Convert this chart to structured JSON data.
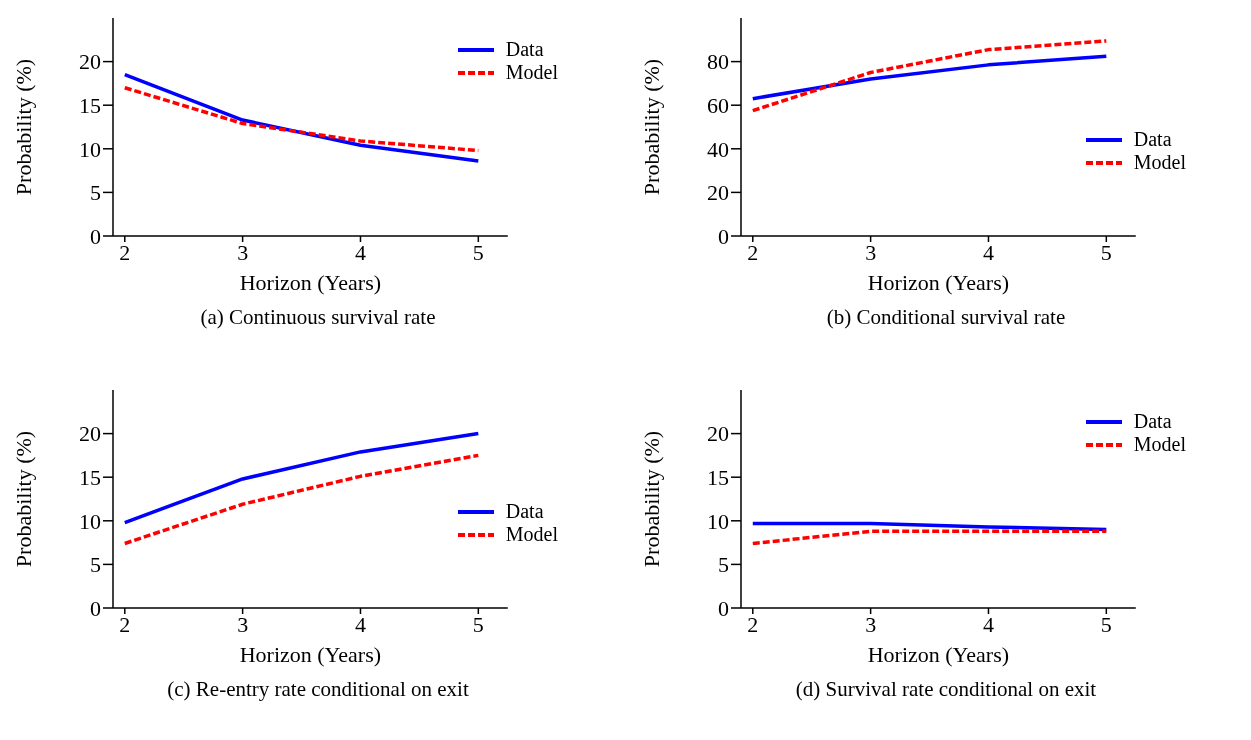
{
  "chart_data": [
    {
      "type": "line",
      "title": "(a) Continuous survival rate",
      "xlabel": "Horizon (Years)",
      "ylabel": "Probability (%)",
      "x": [
        2,
        3,
        4,
        5
      ],
      "xlim": [
        1.9,
        5.25
      ],
      "xticks": [
        2,
        3,
        4,
        5
      ],
      "ylim": [
        0,
        25
      ],
      "yticks": [
        0,
        5,
        10,
        15,
        20
      ],
      "legend": "top right",
      "grid": false,
      "marker": "none",
      "series": [
        {
          "name": "Data",
          "color": "#0000ff",
          "line_style": "solid",
          "values": [
            18.5,
            13.3,
            10.4,
            8.6
          ]
        },
        {
          "name": "Model",
          "color": "#ff0000",
          "line_style": "dashed",
          "values": [
            17.0,
            12.9,
            10.9,
            9.8
          ]
        }
      ]
    },
    {
      "type": "line",
      "title": "(b) Conditional survival rate",
      "xlabel": "Horizon (Years)",
      "ylabel": "Probability (%)",
      "x": [
        2,
        3,
        4,
        5
      ],
      "xlim": [
        1.9,
        5.25
      ],
      "xticks": [
        2,
        3,
        4,
        5
      ],
      "ylim": [
        0,
        100
      ],
      "yticks": [
        0,
        20,
        40,
        60,
        80
      ],
      "legend": "right",
      "grid": false,
      "marker": "none",
      "series": [
        {
          "name": "Data",
          "color": "#0000ff",
          "line_style": "solid",
          "values": [
            63,
            72,
            78.5,
            82.5
          ]
        },
        {
          "name": "Model",
          "color": "#ff0000",
          "line_style": "dashed",
          "values": [
            57.5,
            75,
            85.5,
            89.5
          ]
        }
      ]
    },
    {
      "type": "line",
      "title": "(c) Re-entry rate conditional on exit",
      "xlabel": "Horizon (Years)",
      "ylabel": "Probability (%)",
      "x": [
        2,
        3,
        4,
        5
      ],
      "xlim": [
        1.9,
        5.25
      ],
      "xticks": [
        2,
        3,
        4,
        5
      ],
      "ylim": [
        0,
        25
      ],
      "yticks": [
        0,
        5,
        10,
        15,
        20
      ],
      "legend": "right",
      "grid": false,
      "marker": "none",
      "series": [
        {
          "name": "Data",
          "color": "#0000ff",
          "line_style": "solid",
          "values": [
            9.8,
            14.8,
            17.9,
            20.0
          ]
        },
        {
          "name": "Model",
          "color": "#ff0000",
          "line_style": "dashed",
          "values": [
            7.4,
            11.9,
            15.1,
            17.5
          ]
        }
      ]
    },
    {
      "type": "line",
      "title": "(d) Survival rate conditional on exit",
      "xlabel": "Horizon (Years)",
      "ylabel": "Probability (%)",
      "x": [
        2,
        3,
        4,
        5
      ],
      "xlim": [
        1.9,
        5.25
      ],
      "xticks": [
        2,
        3,
        4,
        5
      ],
      "ylim": [
        0,
        25
      ],
      "yticks": [
        0,
        5,
        10,
        15,
        20
      ],
      "legend": "top right",
      "grid": false,
      "marker": "none",
      "series": [
        {
          "name": "Data",
          "color": "#0000ff",
          "line_style": "solid",
          "values": [
            9.7,
            9.7,
            9.3,
            9.0
          ]
        },
        {
          "name": "Model",
          "color": "#ff0000",
          "line_style": "dashed",
          "values": [
            7.4,
            8.8,
            8.8,
            8.8
          ]
        }
      ]
    }
  ]
}
